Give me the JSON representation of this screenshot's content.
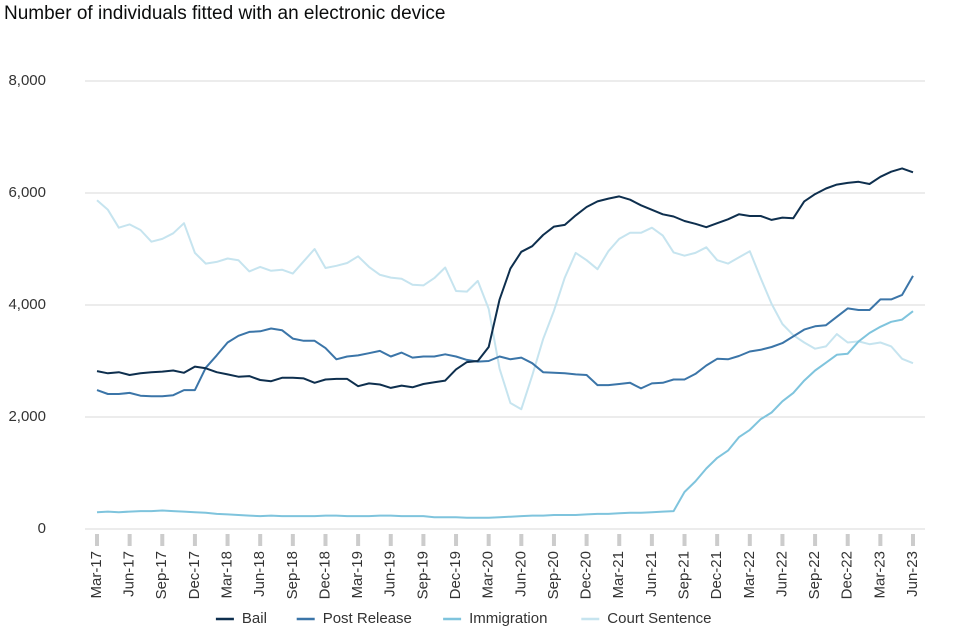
{
  "chart_data": {
    "type": "line",
    "title": "Number of individuals fitted with an electronic device",
    "categories": [
      "Mar-17",
      null,
      null,
      "Jun-17",
      null,
      null,
      "Sep-17",
      null,
      null,
      "Dec-17",
      null,
      null,
      "Mar-18",
      null,
      null,
      "Jun-18",
      null,
      null,
      "Sep-18",
      null,
      null,
      "Dec-18",
      null,
      null,
      "Mar-19",
      null,
      null,
      "Jun-19",
      null,
      null,
      "Sep-19",
      null,
      null,
      "Dec-19",
      null,
      null,
      "Mar-20",
      null,
      null,
      "Jun-20",
      null,
      null,
      "Sep-20",
      null,
      null,
      "Dec-20",
      null,
      null,
      "Mar-21",
      null,
      null,
      "Jun-21",
      null,
      null,
      "Sep-21",
      null,
      null,
      "Dec-21",
      null,
      null,
      "Mar-22",
      null,
      null,
      "Jun-22",
      null,
      null,
      "Sep-22",
      null,
      null,
      "Dec-22",
      null,
      null,
      "Mar-23",
      null,
      null,
      "Jun-23"
    ],
    "series": [
      {
        "name": "Bail",
        "color": "#0e2f4e",
        "values": [
          2820,
          2780,
          2800,
          2750,
          2780,
          2800,
          2810,
          2830,
          2790,
          2900,
          2870,
          2800,
          2760,
          2720,
          2730,
          2660,
          2640,
          2700,
          2700,
          2690,
          2610,
          2670,
          2680,
          2680,
          2550,
          2600,
          2580,
          2520,
          2560,
          2530,
          2590,
          2620,
          2650,
          2850,
          2980,
          3000,
          3250,
          4100,
          4650,
          4950,
          5050,
          5250,
          5400,
          5430,
          5600,
          5750,
          5850,
          5900,
          5940,
          5880,
          5780,
          5700,
          5620,
          5580,
          5500,
          5450,
          5390,
          5460,
          5530,
          5620,
          5590,
          5590,
          5520,
          5560,
          5550,
          5850,
          5980,
          6080,
          6150,
          6180,
          6200,
          6160,
          6290,
          6380,
          6440,
          6370
        ]
      },
      {
        "name": "Post Release",
        "color": "#3b75a8",
        "values": [
          2480,
          2410,
          2410,
          2430,
          2380,
          2370,
          2370,
          2390,
          2480,
          2480,
          2880,
          3100,
          3330,
          3450,
          3520,
          3530,
          3580,
          3550,
          3400,
          3360,
          3360,
          3230,
          3030,
          3080,
          3100,
          3140,
          3180,
          3080,
          3150,
          3060,
          3080,
          3080,
          3120,
          3080,
          3020,
          2990,
          3000,
          3080,
          3030,
          3060,
          2960,
          2800,
          2790,
          2780,
          2760,
          2750,
          2570,
          2570,
          2590,
          2610,
          2510,
          2600,
          2610,
          2670,
          2670,
          2770,
          2920,
          3040,
          3030,
          3090,
          3170,
          3200,
          3250,
          3320,
          3440,
          3560,
          3620,
          3640,
          3790,
          3940,
          3910,
          3910,
          4100,
          4100,
          4180,
          4520
        ]
      },
      {
        "name": "Immigration",
        "color": "#7fc4dd",
        "values": [
          300,
          310,
          300,
          310,
          320,
          320,
          330,
          320,
          310,
          300,
          290,
          270,
          260,
          250,
          240,
          230,
          240,
          230,
          230,
          230,
          230,
          240,
          240,
          230,
          230,
          230,
          240,
          240,
          230,
          230,
          230,
          210,
          210,
          210,
          200,
          200,
          200,
          210,
          220,
          230,
          240,
          240,
          250,
          250,
          250,
          260,
          270,
          270,
          280,
          290,
          290,
          300,
          310,
          320,
          660,
          850,
          1080,
          1270,
          1400,
          1640,
          1770,
          1960,
          2080,
          2280,
          2430,
          2650,
          2830,
          2970,
          3110,
          3130,
          3350,
          3500,
          3610,
          3700,
          3740,
          3890
        ]
      },
      {
        "name": "Court Sentence",
        "color": "#c6e4ef",
        "values": [
          5870,
          5700,
          5380,
          5440,
          5340,
          5130,
          5180,
          5280,
          5460,
          4930,
          4740,
          4770,
          4830,
          4800,
          4600,
          4680,
          4610,
          4630,
          4560,
          4780,
          5000,
          4660,
          4700,
          4750,
          4870,
          4680,
          4540,
          4490,
          4470,
          4360,
          4350,
          4480,
          4670,
          4250,
          4240,
          4430,
          3930,
          2860,
          2250,
          2140,
          2740,
          3390,
          3900,
          4490,
          4930,
          4800,
          4640,
          4960,
          5180,
          5290,
          5290,
          5380,
          5240,
          4940,
          4880,
          4930,
          5030,
          4800,
          4740,
          4850,
          4960,
          4480,
          4020,
          3660,
          3460,
          3330,
          3220,
          3260,
          3480,
          3330,
          3350,
          3300,
          3330,
          3260,
          3040,
          2960
        ]
      }
    ],
    "ylim": [
      0,
      8000
    ],
    "yticks": [
      0,
      {
        "value": 2000,
        "label": "2,000"
      },
      {
        "value": 4000,
        "label": "4,000"
      },
      {
        "value": 6000,
        "label": "6,000"
      },
      {
        "value": 8000,
        "label": "8,000"
      }
    ],
    "grid": true,
    "legend": "bottom"
  }
}
